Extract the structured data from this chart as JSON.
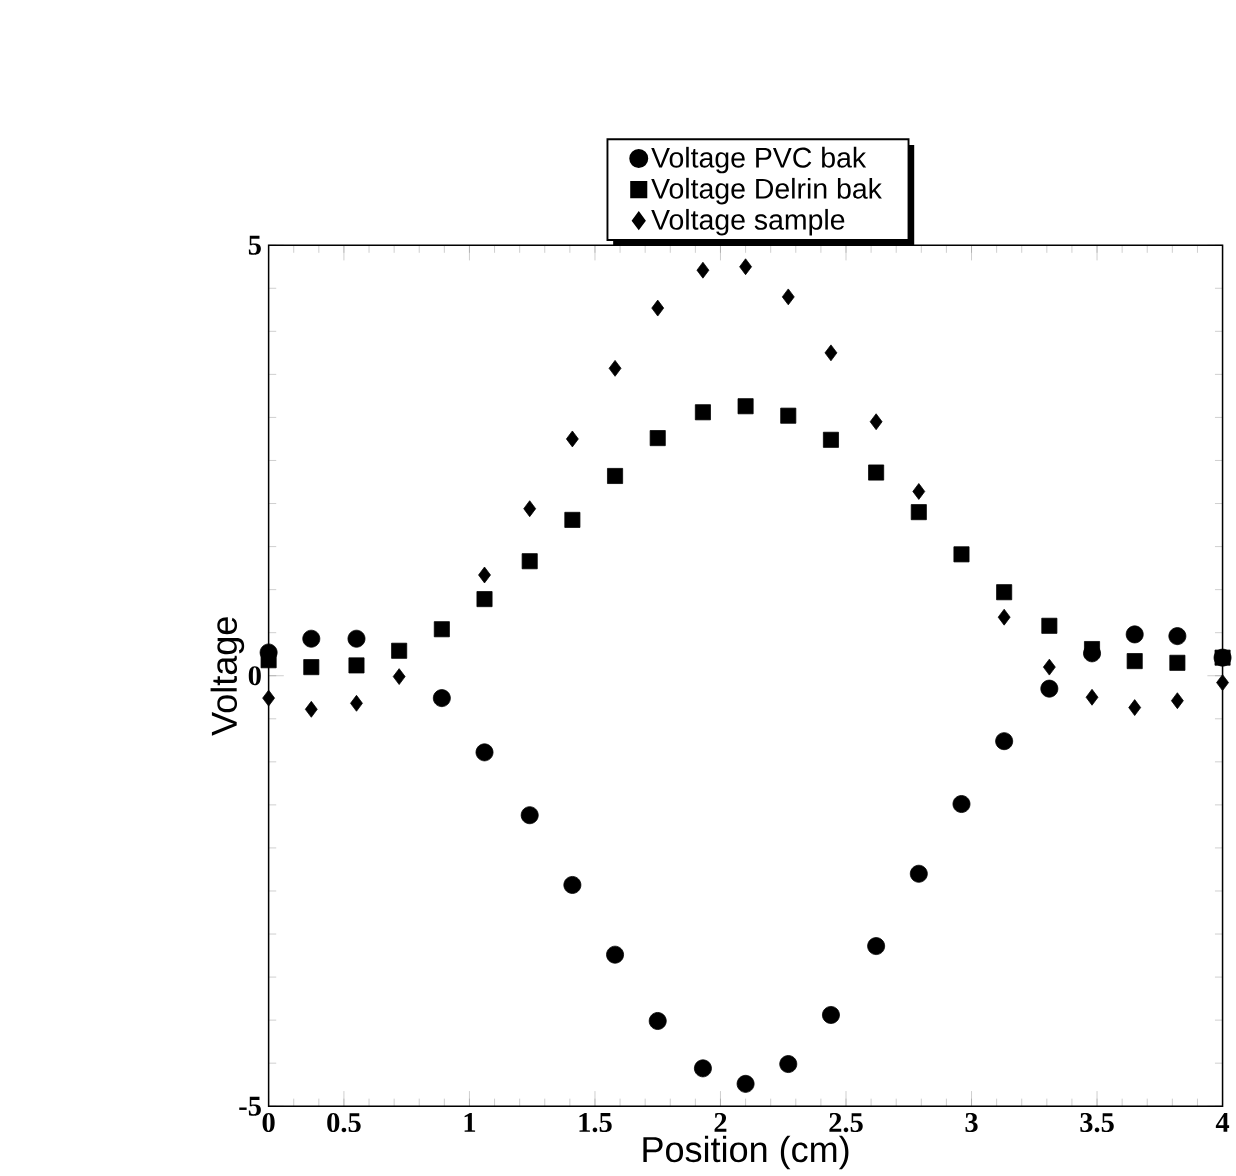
{
  "chart_data": {
    "type": "scatter",
    "xlabel": "Position (cm)",
    "ylabel": "Voltage",
    "x": [
      0.2,
      0.37,
      0.55,
      0.72,
      0.89,
      1.06,
      1.24,
      1.41,
      1.58,
      1.75,
      1.93,
      2.1,
      2.27,
      2.44,
      2.62,
      2.79,
      2.96,
      3.13,
      3.31,
      3.48,
      3.65,
      3.82,
      4.0
    ],
    "series": [
      {
        "name": "Voltage PVC bak",
        "color": "#000000",
        "marker": "circle",
        "values": [
          0.27,
          0.43,
          0.43,
          null,
          -0.26,
          -0.89,
          -1.62,
          -2.43,
          -3.24,
          -4.01,
          -4.56,
          -4.74,
          -4.51,
          -3.94,
          -3.14,
          -2.3,
          -1.49,
          -0.76,
          -0.15,
          0.26,
          0.48,
          0.46,
          0.21
        ]
      },
      {
        "name": "Voltage Delrin bak",
        "color": "#000000",
        "marker": "square",
        "values": [
          0.18,
          0.1,
          0.12,
          0.29,
          0.54,
          0.89,
          1.33,
          1.81,
          2.32,
          2.76,
          3.06,
          3.13,
          3.02,
          2.74,
          2.36,
          1.9,
          1.41,
          0.97,
          0.58,
          0.31,
          0.17,
          0.15,
          0.21
        ]
      },
      {
        "name": "Voltage sample",
        "color": "#000000",
        "marker": "diamond",
        "values": [
          -0.26,
          -0.39,
          -0.32,
          -0.01,
          null,
          1.17,
          1.94,
          2.75,
          3.57,
          4.27,
          4.71,
          4.75,
          4.4,
          3.75,
          2.95,
          2.14,
          null,
          0.68,
          0.1,
          -0.25,
          -0.37,
          -0.29,
          -0.08
        ]
      }
    ],
    "xlim": [
      0.2,
      4
    ],
    "ylim": [
      -5,
      5
    ],
    "xticks": [
      {
        "value": 0.2,
        "label": "0"
      },
      0.5,
      1,
      1.5,
      2,
      2.5,
      3,
      3.5,
      4
    ],
    "yticks": [
      -5,
      0,
      5
    ],
    "grid": false,
    "legend": "top"
  }
}
